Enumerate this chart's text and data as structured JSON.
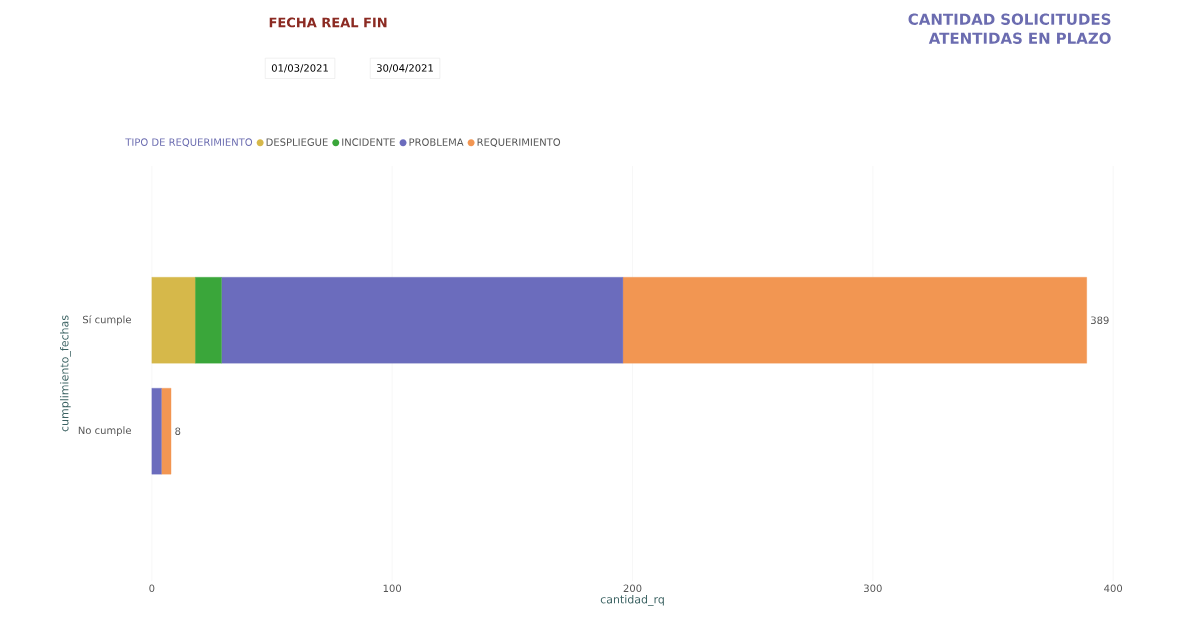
{
  "chart_data": {
    "type": "bar",
    "orientation": "horizontal",
    "stacked": true,
    "title": "CANTIDAD SOLICITUDES ATENTIDAS EN PLAZO",
    "annotations": [
      "FECHA REAL FIN",
      "01/03/2021",
      "30/04/2021"
    ],
    "xlabel": "cantidad_rq",
    "ylabel": "cumplimiento_fechas",
    "legend_title": "TIPO DE REQUERIMIENTO",
    "legend": "top left",
    "categories": [
      "Sí cumple",
      "No cumple"
    ],
    "series": [
      {
        "name": "DESPLIEGUE",
        "color": "#d6b84a",
        "values": [
          18,
          0
        ]
      },
      {
        "name": "INCIDENTE",
        "color": "#3aa63a",
        "values": [
          11,
          0
        ]
      },
      {
        "name": "PROBLEMA",
        "color": "#6b6cbd",
        "values": [
          167,
          4
        ]
      },
      {
        "name": "REQUERIMIENTO",
        "color": "#f29652",
        "values": [
          193,
          4
        ]
      }
    ],
    "totals": [
      "389",
      "8"
    ],
    "xlim": [
      0,
      400
    ],
    "xticks": [
      0,
      100,
      200,
      300,
      400
    ],
    "grid": "x"
  }
}
